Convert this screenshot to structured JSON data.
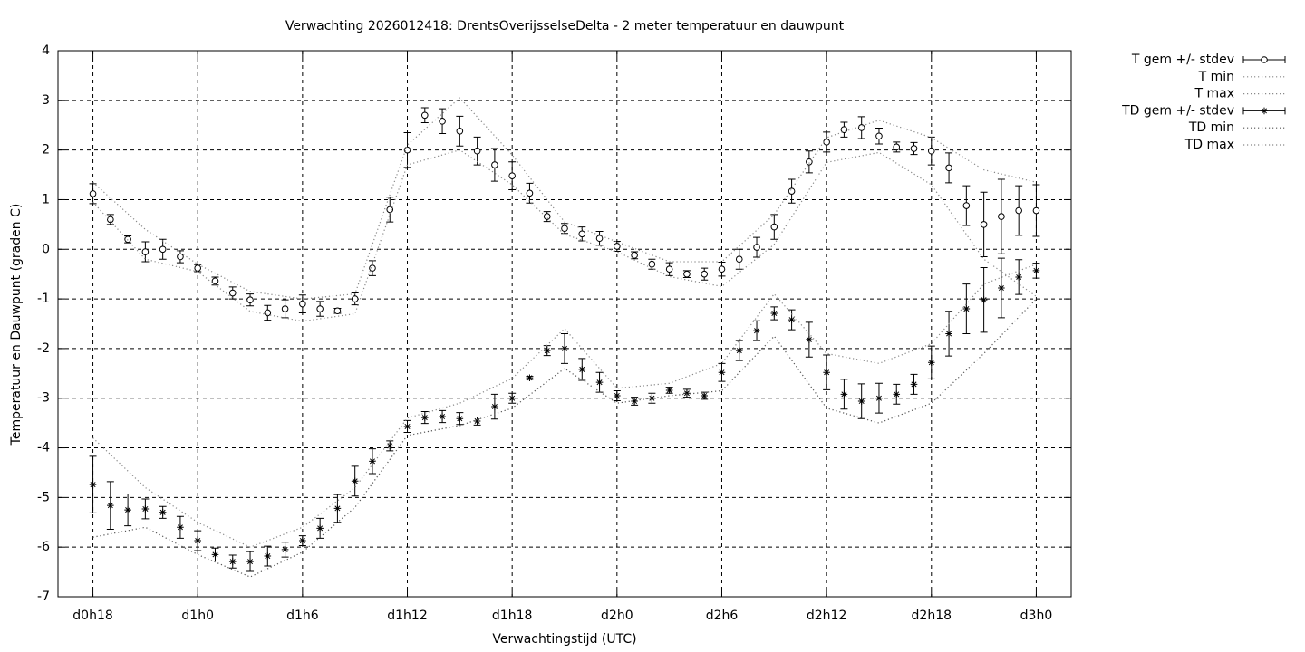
{
  "chart_data": {
    "type": "errorbar",
    "title": "Verwachting 2026012418: DrentsOverijsselseDelta - 2 meter temperatuur en dauwpunt",
    "xlabel": "Verwachtingstijd (UTC)",
    "ylabel": "Temperatuur en Dauwpunt (graden C)",
    "xlim": [
      16,
      74
    ],
    "ylim": [
      -7,
      4
    ],
    "xticks": [
      {
        "value": 18,
        "label": "d0h18"
      },
      {
        "value": 24,
        "label": "d1h0"
      },
      {
        "value": 30,
        "label": "d1h6"
      },
      {
        "value": 36,
        "label": "d1h12"
      },
      {
        "value": 42,
        "label": "d1h18"
      },
      {
        "value": 48,
        "label": "d2h0"
      },
      {
        "value": 54,
        "label": "d2h6"
      },
      {
        "value": 60,
        "label": "d2h12"
      },
      {
        "value": 66,
        "label": "d2h18"
      },
      {
        "value": 72,
        "label": "d3h0"
      }
    ],
    "yticks": [
      -7,
      -6,
      -5,
      -4,
      -3,
      -2,
      -1,
      0,
      1,
      2,
      3,
      4
    ],
    "grid": true,
    "series": [
      {
        "name": "T gem +/- stdev",
        "style": "errorbar",
        "marker": "circle",
        "color": "#000000",
        "x": [
          18,
          19,
          20,
          21,
          22,
          23,
          24,
          25,
          26,
          27,
          28,
          29,
          30,
          31,
          32,
          33,
          34,
          35,
          36,
          37,
          38,
          39,
          40,
          41,
          42,
          43,
          44,
          45,
          46,
          47,
          48,
          49,
          50,
          51,
          52,
          53,
          54,
          55,
          56,
          57,
          58,
          59,
          60,
          61,
          62,
          63,
          64,
          65,
          66,
          67,
          68,
          69,
          70,
          71,
          72
        ],
        "values": [
          1.12,
          0.6,
          0.2,
          -0.05,
          0,
          -0.15,
          -0.38,
          -0.64,
          -0.88,
          -1.02,
          -1.28,
          -1.2,
          -1.1,
          -1.2,
          -1.24,
          -1.0,
          -0.38,
          0.8,
          2.0,
          2.7,
          2.58,
          2.38,
          1.98,
          1.7,
          1.48,
          1.13,
          0.66,
          0.42,
          0.31,
          0.22,
          0.06,
          -0.12,
          -0.3,
          -0.4,
          -0.5,
          -0.5,
          -0.4,
          -0.2,
          0.04,
          0.45,
          1.17,
          1.76,
          2.16,
          2.41,
          2.45,
          2.28,
          2.06,
          2.03,
          1.98,
          1.64,
          0.88,
          0.5,
          0.66,
          0.78,
          0.78
        ],
        "errors": [
          0.2,
          0.1,
          0.07,
          0.2,
          0.2,
          0.12,
          0.07,
          0.08,
          0.12,
          0.12,
          0.15,
          0.18,
          0.18,
          0.15,
          0.05,
          0.12,
          0.15,
          0.25,
          0.35,
          0.15,
          0.25,
          0.3,
          0.28,
          0.33,
          0.28,
          0.2,
          0.1,
          0.1,
          0.14,
          0.14,
          0.1,
          0.07,
          0.1,
          0.13,
          0.07,
          0.12,
          0.14,
          0.2,
          0.2,
          0.25,
          0.24,
          0.22,
          0.2,
          0.15,
          0.22,
          0.16,
          0.1,
          0.12,
          0.28,
          0.3,
          0.4,
          0.65,
          0.75,
          0.5,
          0.52
        ]
      },
      {
        "name": "T min",
        "style": "dotted",
        "color": "#888888",
        "x": [
          18,
          21,
          24,
          27,
          30,
          33,
          36,
          39,
          42,
          45,
          48,
          51,
          54,
          57,
          60,
          63,
          66,
          69,
          72
        ],
        "values": [
          0.95,
          -0.2,
          -0.45,
          -1.25,
          -1.45,
          -1.3,
          1.7,
          2.0,
          1.3,
          0.3,
          -0.05,
          -0.55,
          -0.75,
          0.1,
          1.75,
          1.95,
          1.3,
          -0.2,
          -0.95
        ]
      },
      {
        "name": "T max",
        "style": "dotted",
        "color": "#888888",
        "x": [
          18,
          21,
          24,
          27,
          30,
          33,
          36,
          39,
          42,
          45,
          48,
          51,
          54,
          57,
          60,
          63,
          66,
          69,
          72
        ],
        "values": [
          1.35,
          0.4,
          -0.3,
          -0.85,
          -1.0,
          -0.9,
          2.1,
          3.05,
          1.9,
          0.55,
          0.15,
          -0.25,
          -0.25,
          0.7,
          2.25,
          2.6,
          2.25,
          1.6,
          1.35
        ]
      },
      {
        "name": "TD gem +/- stdev",
        "style": "errorbar",
        "marker": "star",
        "color": "#000000",
        "x": [
          18,
          19,
          20,
          21,
          22,
          23,
          24,
          25,
          26,
          27,
          28,
          29,
          30,
          31,
          32,
          33,
          34,
          35,
          36,
          37,
          38,
          39,
          40,
          41,
          42,
          43,
          44,
          45,
          46,
          47,
          48,
          49,
          50,
          51,
          52,
          53,
          54,
          55,
          56,
          57,
          58,
          59,
          60,
          61,
          62,
          63,
          64,
          65,
          66,
          67,
          68,
          69,
          70,
          71,
          72
        ],
        "values": [
          -4.74,
          -5.16,
          -5.25,
          -5.23,
          -5.3,
          -5.6,
          -5.87,
          -6.15,
          -6.29,
          -6.29,
          -6.18,
          -6.05,
          -5.87,
          -5.62,
          -5.22,
          -4.67,
          -4.27,
          -3.96,
          -3.57,
          -3.39,
          -3.37,
          -3.41,
          -3.46,
          -3.17,
          -3.0,
          -2.59,
          -2.04,
          -2.0,
          -2.42,
          -2.68,
          -2.95,
          -3.06,
          -3.0,
          -2.84,
          -2.9,
          -2.95,
          -2.48,
          -2.04,
          -1.64,
          -1.29,
          -1.42,
          -1.82,
          -2.48,
          -2.92,
          -3.06,
          -3.0,
          -2.92,
          -2.72,
          -2.28,
          -1.7,
          -1.2,
          -1.02,
          -0.78,
          -0.56,
          -0.43
        ],
        "errors": [
          0.57,
          0.48,
          0.32,
          0.2,
          0.12,
          0.22,
          0.2,
          0.13,
          0.13,
          0.2,
          0.2,
          0.15,
          0.1,
          0.2,
          0.28,
          0.3,
          0.25,
          0.1,
          0.12,
          0.12,
          0.12,
          0.12,
          0.08,
          0.25,
          0.1,
          0.03,
          0.1,
          0.3,
          0.22,
          0.2,
          0.1,
          0.08,
          0.1,
          0.06,
          0.08,
          0.07,
          0.18,
          0.2,
          0.2,
          0.13,
          0.2,
          0.35,
          0.35,
          0.3,
          0.35,
          0.3,
          0.2,
          0.2,
          0.33,
          0.45,
          0.5,
          0.65,
          0.6,
          0.35,
          0.15
        ]
      },
      {
        "name": "TD min",
        "style": "dotted",
        "color": "#555555",
        "x": [
          18,
          21,
          24,
          27,
          30,
          33,
          36,
          39,
          42,
          45,
          48,
          51,
          54,
          57,
          60,
          63,
          66,
          69,
          72
        ],
        "values": [
          -5.8,
          -5.6,
          -6.15,
          -6.6,
          -6.1,
          -5.2,
          -3.75,
          -3.55,
          -3.2,
          -2.4,
          -3.1,
          -2.95,
          -2.85,
          -1.75,
          -3.2,
          -3.5,
          -3.1,
          -2.1,
          -1.0
        ]
      },
      {
        "name": "TD max",
        "style": "dotted",
        "color": "#888888",
        "x": [
          18,
          21,
          24,
          27,
          30,
          33,
          36,
          39,
          42,
          45,
          48,
          51,
          54,
          57,
          60,
          63,
          66,
          69,
          72
        ],
        "values": [
          -3.8,
          -4.8,
          -5.5,
          -6.0,
          -5.6,
          -4.8,
          -3.4,
          -3.1,
          -2.6,
          -1.6,
          -2.8,
          -2.7,
          -2.3,
          -0.9,
          -2.1,
          -2.3,
          -1.9,
          -0.7,
          -0.3
        ]
      }
    ]
  }
}
